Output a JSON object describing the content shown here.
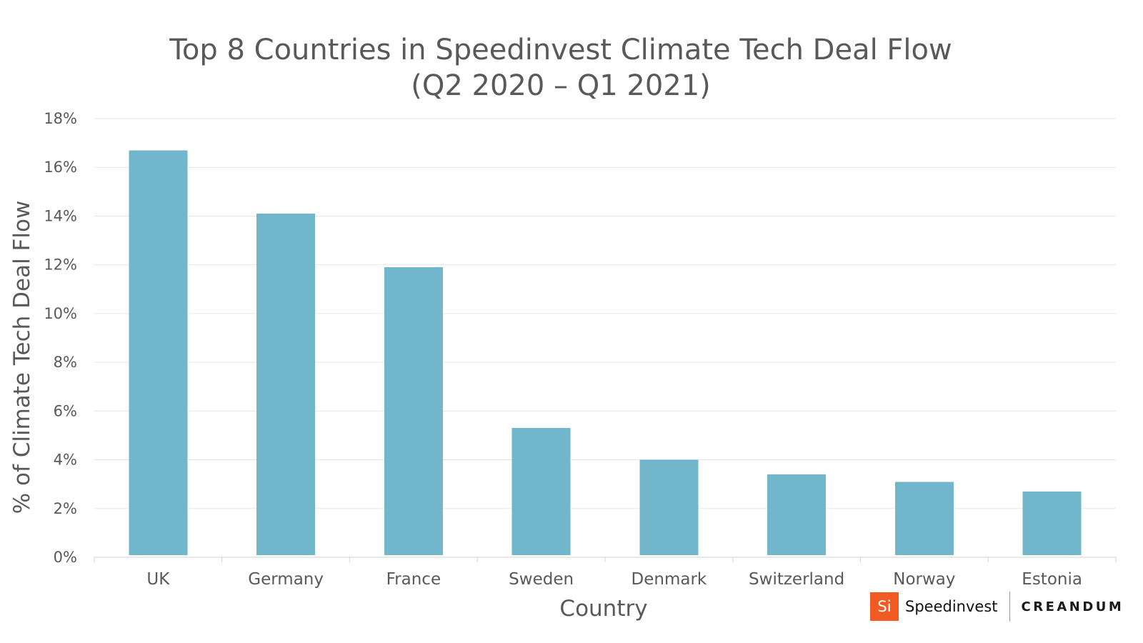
{
  "chart_data": {
    "type": "bar",
    "title_lines": [
      "Top 8 Countries in Speedinvest Climate Tech Deal Flow",
      "(Q2 2020 – Q1 2021)"
    ],
    "xlabel": "Country",
    "ylabel": "% of Climate Tech Deal Flow",
    "categories": [
      "UK",
      "Germany",
      "France",
      "Sweden",
      "Denmark",
      "Switzerland",
      "Norway",
      "Estonia"
    ],
    "values": [
      16.7,
      14.1,
      11.9,
      5.3,
      4.0,
      3.4,
      3.1,
      2.7
    ],
    "value_unit": "%",
    "ylim": [
      0,
      18
    ],
    "yticks": [
      0,
      2,
      4,
      6,
      8,
      10,
      12,
      14,
      16,
      18
    ],
    "ytick_labels": [
      "0%",
      "2%",
      "4%",
      "6%",
      "8%",
      "10%",
      "12%",
      "14%",
      "16%",
      "18%"
    ],
    "grid": true,
    "bar_color": "#72b6cb"
  },
  "branding": {
    "speedinvest_mark": "Si",
    "speedinvest_name": "Speedinvest",
    "creandum_name": "CREANDUM",
    "speedinvest_color": "#f15a22"
  }
}
